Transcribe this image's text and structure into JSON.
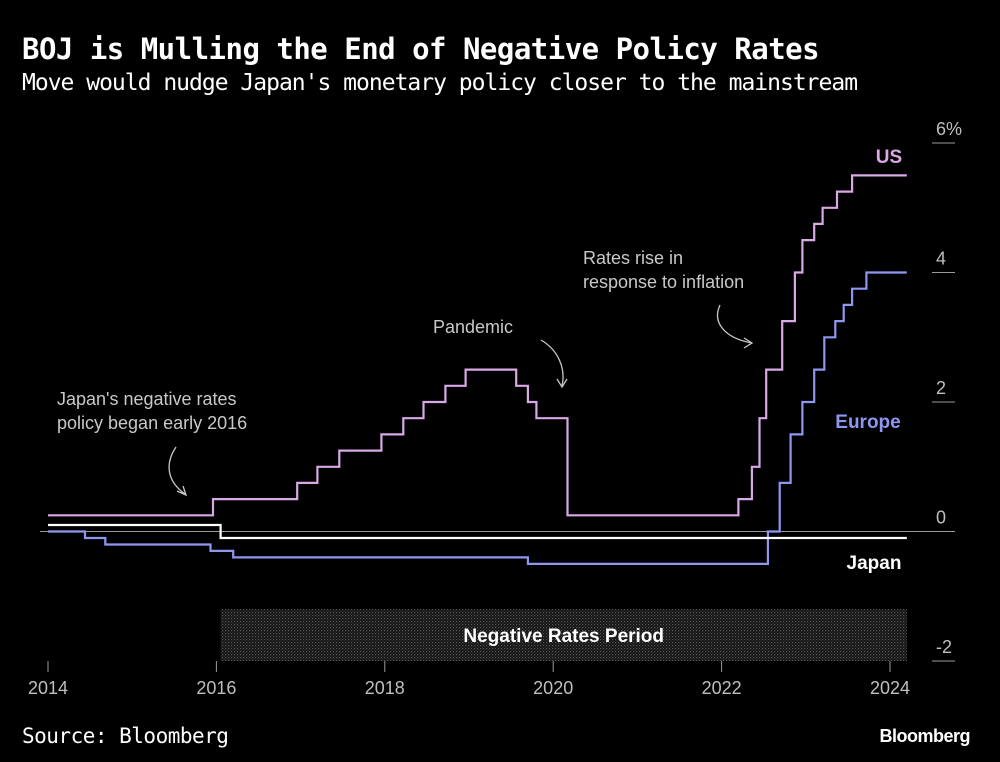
{
  "header": {
    "title": "BOJ is Mulling the End of Negative Policy Rates",
    "subtitle": "Move would nudge Japan's monetary policy closer to the mainstream"
  },
  "footer": {
    "source": "Source: Bloomberg",
    "brand": "Bloomberg"
  },
  "colors": {
    "us": "#d9a8e6",
    "europe": "#8e96f0",
    "japan": "#ffffff",
    "axis": "#9a9a9a",
    "background": "#000000"
  },
  "chart_data": {
    "type": "line",
    "step": true,
    "xlim": [
      2014,
      2024.35
    ],
    "ylim": [
      -2,
      6
    ],
    "x_ticks": [
      2014,
      2016,
      2018,
      2020,
      2022,
      2024
    ],
    "x_tick_labels": [
      "2014",
      "2016",
      "2018",
      "2020",
      "2022",
      "2024"
    ],
    "y_ticks": [
      6,
      4,
      2,
      0,
      -2
    ],
    "y_tick_labels": [
      "6%",
      "4",
      "2",
      "0",
      "-2"
    ],
    "grid": false,
    "series": [
      {
        "name": "US",
        "key": "us",
        "points": [
          [
            2014.0,
            0.25
          ],
          [
            2015.96,
            0.25
          ],
          [
            2015.96,
            0.5
          ],
          [
            2016.96,
            0.5
          ],
          [
            2016.96,
            0.75
          ],
          [
            2017.2,
            0.75
          ],
          [
            2017.2,
            1.0
          ],
          [
            2017.46,
            1.0
          ],
          [
            2017.46,
            1.25
          ],
          [
            2017.96,
            1.25
          ],
          [
            2017.96,
            1.5
          ],
          [
            2018.22,
            1.5
          ],
          [
            2018.22,
            1.75
          ],
          [
            2018.46,
            1.75
          ],
          [
            2018.46,
            2.0
          ],
          [
            2018.72,
            2.0
          ],
          [
            2018.72,
            2.25
          ],
          [
            2018.96,
            2.25
          ],
          [
            2018.96,
            2.5
          ],
          [
            2019.56,
            2.5
          ],
          [
            2019.56,
            2.25
          ],
          [
            2019.7,
            2.25
          ],
          [
            2019.7,
            2.0
          ],
          [
            2019.8,
            2.0
          ],
          [
            2019.8,
            1.75
          ],
          [
            2020.17,
            1.75
          ],
          [
            2020.17,
            0.25
          ],
          [
            2022.2,
            0.25
          ],
          [
            2022.2,
            0.5
          ],
          [
            2022.36,
            0.5
          ],
          [
            2022.36,
            1.0
          ],
          [
            2022.45,
            1.0
          ],
          [
            2022.45,
            1.75
          ],
          [
            2022.53,
            1.75
          ],
          [
            2022.53,
            2.5
          ],
          [
            2022.72,
            2.5
          ],
          [
            2022.72,
            3.25
          ],
          [
            2022.87,
            3.25
          ],
          [
            2022.87,
            4.0
          ],
          [
            2022.96,
            4.0
          ],
          [
            2022.96,
            4.5
          ],
          [
            2023.1,
            4.5
          ],
          [
            2023.1,
            4.75
          ],
          [
            2023.2,
            4.75
          ],
          [
            2023.2,
            5.0
          ],
          [
            2023.37,
            5.0
          ],
          [
            2023.37,
            5.25
          ],
          [
            2023.55,
            5.25
          ],
          [
            2023.55,
            5.5
          ],
          [
            2024.2,
            5.5
          ]
        ]
      },
      {
        "name": "Europe",
        "key": "europe",
        "points": [
          [
            2014.0,
            0.0
          ],
          [
            2014.44,
            0.0
          ],
          [
            2014.44,
            -0.1
          ],
          [
            2014.68,
            -0.1
          ],
          [
            2014.68,
            -0.2
          ],
          [
            2015.93,
            -0.2
          ],
          [
            2015.93,
            -0.3
          ],
          [
            2016.2,
            -0.3
          ],
          [
            2016.2,
            -0.4
          ],
          [
            2019.7,
            -0.4
          ],
          [
            2019.7,
            -0.5
          ],
          [
            2022.55,
            -0.5
          ],
          [
            2022.55,
            0.0
          ],
          [
            2022.69,
            0.0
          ],
          [
            2022.69,
            0.75
          ],
          [
            2022.82,
            0.75
          ],
          [
            2022.82,
            1.5
          ],
          [
            2022.96,
            1.5
          ],
          [
            2022.96,
            2.0
          ],
          [
            2023.1,
            2.0
          ],
          [
            2023.1,
            2.5
          ],
          [
            2023.22,
            2.5
          ],
          [
            2023.22,
            3.0
          ],
          [
            2023.35,
            3.0
          ],
          [
            2023.35,
            3.25
          ],
          [
            2023.45,
            3.25
          ],
          [
            2023.45,
            3.5
          ],
          [
            2023.55,
            3.5
          ],
          [
            2023.55,
            3.75
          ],
          [
            2023.72,
            3.75
          ],
          [
            2023.72,
            4.0
          ],
          [
            2024.2,
            4.0
          ]
        ]
      },
      {
        "name": "Japan",
        "key": "japan",
        "points": [
          [
            2014.0,
            0.1
          ],
          [
            2016.05,
            0.1
          ],
          [
            2016.05,
            -0.1
          ],
          [
            2024.2,
            -0.1
          ]
        ]
      }
    ],
    "shaded_region": {
      "label": "Negative Rates Period",
      "x_start": 2016.05,
      "x_end": 2024.2,
      "y_start": -1.2,
      "y_end": -2
    },
    "annotations": [
      {
        "key": "japan_start",
        "lines": [
          "Japan's negative rates",
          "policy began early 2016"
        ]
      },
      {
        "key": "pandemic",
        "lines": [
          "Pandemic"
        ]
      },
      {
        "key": "inflation",
        "lines": [
          "Rates rise in",
          "response to inflation"
        ]
      }
    ]
  }
}
